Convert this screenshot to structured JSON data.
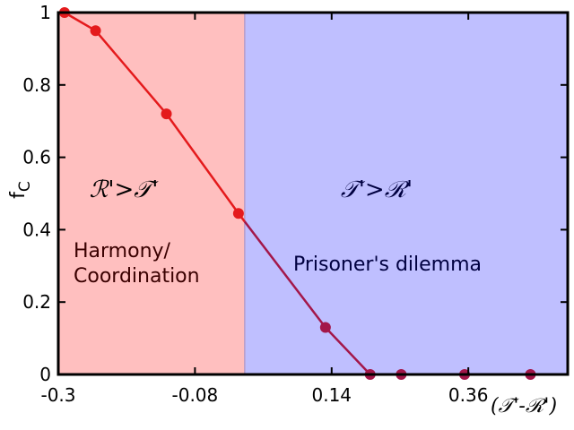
{
  "chart_data": {
    "type": "line",
    "xlabel": "(𝒯'-ℛ')",
    "ylabel": "f_C",
    "ylabel_main": "f",
    "ylabel_sub": "C",
    "xlim": [
      -0.3,
      0.52
    ],
    "ylim": [
      0,
      1
    ],
    "xticks": [
      -0.3,
      -0.08,
      0.14,
      0.36
    ],
    "xtick_labels": [
      "-0.3",
      "-0.08",
      "0.14",
      "0.36"
    ],
    "yticks": [
      0,
      0.2,
      0.4,
      0.6,
      0.8,
      1
    ],
    "ytick_labels": [
      "0",
      "0.2",
      "0.4",
      "0.6",
      "0.8",
      "1"
    ],
    "regions": [
      {
        "x_from": -0.3,
        "x_to": 0.0,
        "color": "#ffbfbf",
        "label_math": "ℛ'>𝒯'",
        "label_math_color": "#000000",
        "label_lines": [
          "Harmony/",
          "Coordination"
        ],
        "label_color": "#3a0000"
      },
      {
        "x_from": 0.0,
        "x_to": 0.52,
        "color": "#bfbfff",
        "label_math": "𝒯'>ℛ'",
        "label_math_color": "#000040",
        "label_lines": [
          "Prisoner's dilemma"
        ],
        "label_color": "#000040"
      }
    ],
    "series": [
      {
        "x": [
          -0.29,
          -0.24,
          -0.126,
          -0.01,
          0.13,
          0.202,
          0.252,
          0.354,
          0.46
        ],
        "y": [
          1.0,
          0.95,
          0.72,
          0.445,
          0.13,
          0.0,
          0.0,
          0.0,
          0.0
        ],
        "color_left": "#e41a1c",
        "color_right": "#a3174a"
      }
    ],
    "grid": false
  }
}
